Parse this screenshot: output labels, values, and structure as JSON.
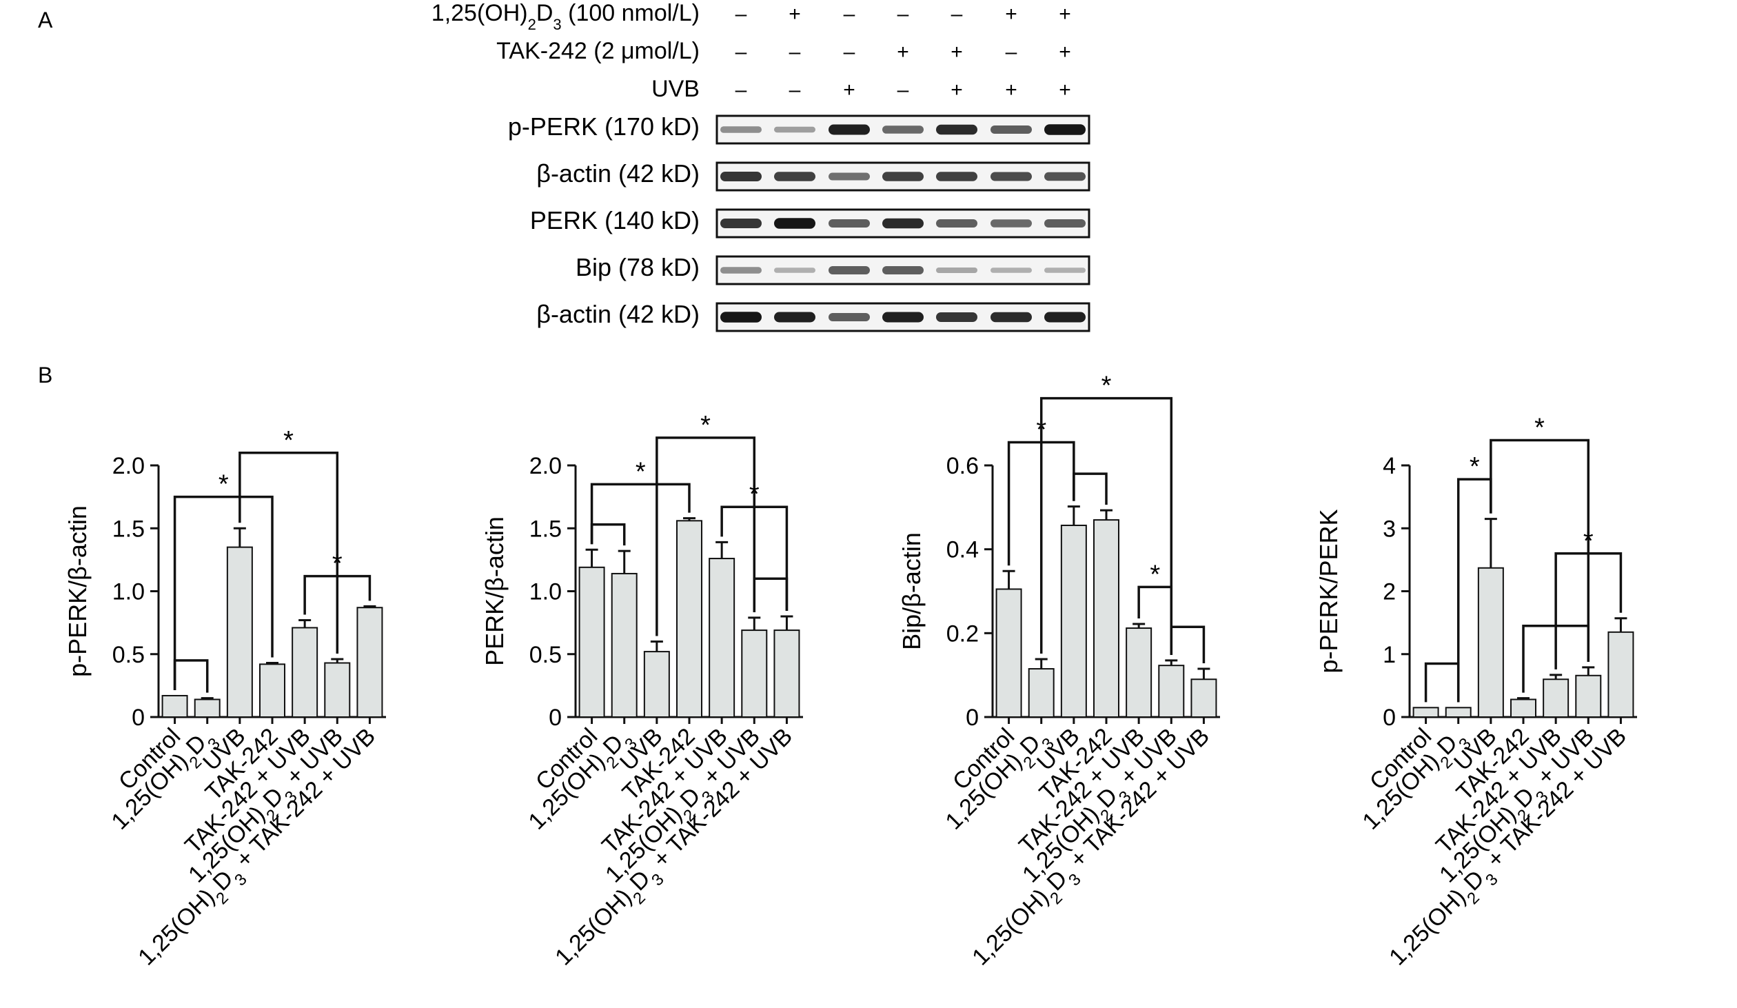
{
  "panel_a": {
    "label": "A",
    "conditions": [
      {
        "label_html": "1,25(OH)<tspan baseline-shift=\"sub\" font-size=\"22\">2</tspan>D<tspan baseline-shift=\"sub\" font-size=\"22\">3</tspan> (100 nmol/L)",
        "signs": [
          "–",
          "+",
          "–",
          "–",
          "–",
          "+",
          "+"
        ]
      },
      {
        "label_html": "TAK-242 (2 μmol/L)",
        "signs": [
          "–",
          "–",
          "–",
          "+",
          "+",
          "–",
          "+"
        ]
      },
      {
        "label_html": "UVB",
        "signs": [
          "–",
          "–",
          "+",
          "–",
          "+",
          "+",
          "+"
        ]
      }
    ],
    "blots": [
      {
        "label": "p-PERK (170 kD)",
        "intensity": [
          0.35,
          0.25,
          0.9,
          0.55,
          0.85,
          0.6,
          0.95
        ]
      },
      {
        "label": "β-actin (42 kD)",
        "intensity": [
          0.8,
          0.75,
          0.5,
          0.75,
          0.75,
          0.7,
          0.65
        ]
      },
      {
        "label": "PERK (140 kD)",
        "intensity": [
          0.8,
          0.95,
          0.6,
          0.85,
          0.6,
          0.55,
          0.6
        ]
      },
      {
        "label": "Bip (78 kD)",
        "intensity": [
          0.35,
          0.15,
          0.6,
          0.6,
          0.2,
          0.15,
          0.15
        ]
      },
      {
        "label": "β-actin (42 kD)",
        "intensity": [
          0.95,
          0.9,
          0.6,
          0.9,
          0.8,
          0.85,
          0.9
        ]
      }
    ]
  },
  "panel_b": {
    "label": "B"
  },
  "chart_data": [
    {
      "type": "bar",
      "ylabel": "p-PERK/β-actin",
      "ylim": [
        0,
        2.0
      ],
      "yticks": [
        0,
        0.5,
        1.0,
        1.5,
        2.0
      ],
      "ytick_labels": [
        "0",
        "0.5",
        "1.0",
        "1.5",
        "2.0"
      ],
      "categories": [
        "Control",
        "1,25(OH)2D3",
        "UVB",
        "TAK-242",
        "TAK-242 + UVB",
        "1,25(OH)2D3 + UVB",
        "1,25(OH)2D3 + TAK-242 + UVB"
      ],
      "values": [
        0.17,
        0.14,
        1.35,
        0.42,
        0.71,
        0.43,
        0.87
      ],
      "errors": [
        0.0,
        0.01,
        0.15,
        0.01,
        0.06,
        0.03,
        0.01
      ],
      "significance": [
        {
          "from": 0,
          "to": 1,
          "level": 0.45,
          "star": "",
          "up": false
        },
        {
          "from": 0,
          "to": 3,
          "level": 1.75,
          "star": "*",
          "up": false
        },
        {
          "from": 2,
          "to": 5,
          "level": 2.1,
          "star": "*",
          "up": false
        },
        {
          "from": 4,
          "to": 6,
          "level": 1.12,
          "star": "*",
          "up": false
        }
      ]
    },
    {
      "type": "bar",
      "ylabel": "PERK/β-actin",
      "ylim": [
        0,
        2.0
      ],
      "yticks": [
        0,
        0.5,
        1.0,
        1.5,
        2.0
      ],
      "ytick_labels": [
        "0",
        "0.5",
        "1.0",
        "1.5",
        "2.0"
      ],
      "categories": [
        "Control",
        "1,25(OH)2D3",
        "UVB",
        "TAK-242",
        "TAK-242 + UVB",
        "1,25(OH)2D3 + UVB",
        "1,25(OH)2D3 + TAK-242 + UVB"
      ],
      "values": [
        1.19,
        1.14,
        0.52,
        1.56,
        1.26,
        0.69,
        0.69
      ],
      "errors": [
        0.14,
        0.18,
        0.08,
        0.02,
        0.13,
        0.1,
        0.11
      ],
      "significance": [
        {
          "from": 0,
          "to": 1,
          "level": 1.53,
          "star": "",
          "up": false
        },
        {
          "from": 0,
          "to": 3,
          "level": 1.85,
          "star": "*",
          "up": false
        },
        {
          "from": 2,
          "to": 5,
          "level": 2.22,
          "star": "*",
          "up": false
        },
        {
          "from": 4,
          "to": 6,
          "level": 1.67,
          "star": "*",
          "up": false
        },
        {
          "from": 5,
          "to": 6,
          "level": 1.1,
          "star": "",
          "up": false
        }
      ]
    },
    {
      "type": "bar",
      "ylabel": "Bip/β-actin",
      "ylim": [
        0,
        0.6
      ],
      "yticks": [
        0,
        0.2,
        0.4,
        0.6
      ],
      "ytick_labels": [
        "0",
        "0.2",
        "0.4",
        "0.6"
      ],
      "categories": [
        "Control",
        "1,25(OH)2D3",
        "UVB",
        "TAK-242",
        "TAK-242 + UVB",
        "1,25(OH)2D3 + UVB",
        "1,25(OH)2D3 + TAK-242 + UVB"
      ],
      "values": [
        0.305,
        0.115,
        0.457,
        0.47,
        0.212,
        0.123,
        0.09
      ],
      "errors": [
        0.043,
        0.023,
        0.045,
        0.023,
        0.01,
        0.012,
        0.025
      ],
      "significance": [
        {
          "from": 0,
          "to": 2,
          "level": 0.655,
          "star": "*",
          "up": true
        },
        {
          "from": 2,
          "to": 3,
          "level": 0.58,
          "star": "",
          "up": false
        },
        {
          "from": 1,
          "to": 5,
          "level": 0.76,
          "star": "*",
          "up": false
        },
        {
          "from": 4,
          "to": 5,
          "level": 0.31,
          "star": "*",
          "up": false
        },
        {
          "from": 5,
          "to": 6,
          "level": 0.215,
          "star": "",
          "up": false
        }
      ]
    },
    {
      "type": "bar",
      "ylabel": "p-PERK/PERK",
      "ylim": [
        0,
        4
      ],
      "yticks": [
        0,
        1,
        2,
        3,
        4
      ],
      "ytick_labels": [
        "0",
        "1",
        "2",
        "3",
        "4"
      ],
      "categories": [
        "Control",
        "1,25(OH)2D3",
        "UVB",
        "TAK-242",
        "TAK-242 + UVB",
        "1,25(OH)2D3 + UVB",
        "1,25(OH)2D3 + TAK-242 + UVB"
      ],
      "values": [
        0.15,
        0.15,
        2.37,
        0.28,
        0.6,
        0.66,
        1.35
      ],
      "errors": [
        0.0,
        0.0,
        0.78,
        0.02,
        0.07,
        0.13,
        0.22
      ],
      "significance": [
        {
          "from": 0,
          "to": 1,
          "level": 0.85,
          "star": "",
          "up": false
        },
        {
          "from": 1,
          "to": 2,
          "level": 3.78,
          "star": "*",
          "up": true
        },
        {
          "from": 2,
          "to": 5,
          "level": 4.4,
          "star": "*",
          "up": true
        },
        {
          "from": 3,
          "to": 5,
          "level": 1.45,
          "star": "",
          "up": true
        },
        {
          "from": 4,
          "to": 6,
          "level": 2.6,
          "star": "*",
          "up": false
        }
      ]
    }
  ]
}
